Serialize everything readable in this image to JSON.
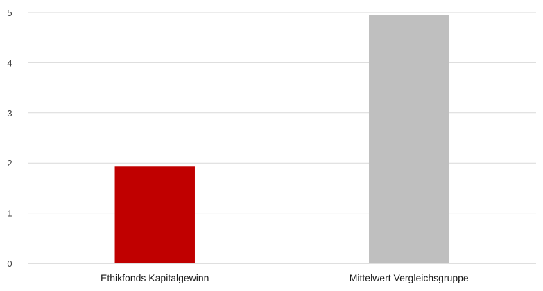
{
  "chart_data": {
    "type": "bar",
    "title": "",
    "xlabel": "",
    "ylabel": "",
    "categories": [
      "Ethikfonds Kapitalgewinn",
      "Mittelwert Vergleichsgruppe"
    ],
    "values": [
      1.93,
      4.95
    ],
    "colors": [
      "#c00000",
      "#bfbfbf"
    ],
    "ylim": [
      0,
      5
    ],
    "yticks": [
      "0",
      "1",
      "2",
      "3",
      "4",
      "5"
    ],
    "grid": true,
    "gridColor": "#d9d9d9",
    "legend": "none"
  }
}
